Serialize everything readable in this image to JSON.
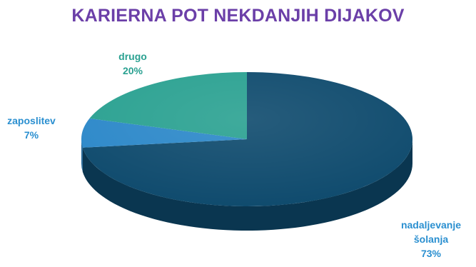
{
  "chart_data": {
    "type": "pie",
    "title": "KARIERNA POT NEKDANJIH DIJAKOV",
    "slices": [
      {
        "name": "nadaljevanje šolanja",
        "label_lines": [
          "nadaljevanje",
          "šolanja"
        ],
        "value_label": "73%",
        "value": 73,
        "color": "#0e4a6d",
        "side_color": "#0a3650",
        "label_color": "#2a8fd0"
      },
      {
        "name": "zaposlitev",
        "label_lines": [
          "zaposlitev"
        ],
        "value_label": "7%",
        "value": 7,
        "color": "#2c88c9",
        "side_color": "#1f6496",
        "label_color": "#2a8fd0"
      },
      {
        "name": "drugo",
        "label_lines": [
          "drugo"
        ],
        "value_label": "20%",
        "value": 20,
        "color": "#2aa191",
        "side_color": "#1e7a6d",
        "label_color": "#2aa191"
      }
    ],
    "legend": "none",
    "style": "3d"
  }
}
